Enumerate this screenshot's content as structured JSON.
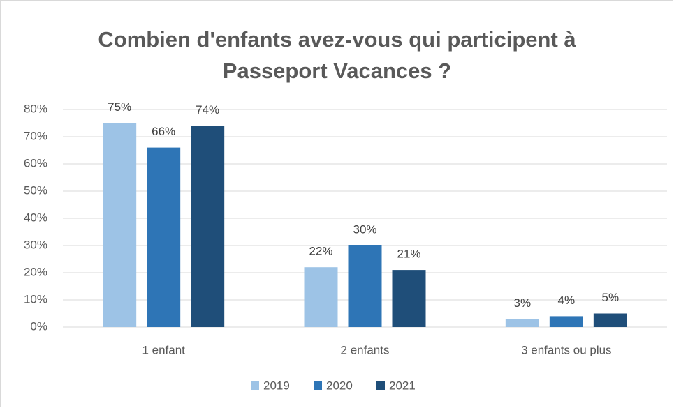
{
  "chart_data": {
    "type": "bar",
    "title": "Combien d'enfants avez-vous qui participent à Passeport Vacances ?",
    "categories": [
      "1 enfant",
      "2 enfants",
      "3 enfants ou plus"
    ],
    "series": [
      {
        "name": "2019",
        "color": "#9dc3e6",
        "values": [
          75,
          22,
          3
        ],
        "value_labels": [
          "75%",
          "22%",
          "3%"
        ]
      },
      {
        "name": "2020",
        "color": "#2e75b6",
        "values": [
          66,
          30,
          4
        ],
        "value_labels": [
          "66%",
          "30%",
          "4%"
        ]
      },
      {
        "name": "2021",
        "color": "#1f4e79",
        "values": [
          74,
          21,
          5
        ],
        "value_labels": [
          "74%",
          "21%",
          "5%"
        ]
      }
    ],
    "ylim": [
      0,
      80
    ],
    "yticks": [
      {
        "value": 0,
        "label": "0%"
      },
      {
        "value": 10,
        "label": "10%"
      },
      {
        "value": 20,
        "label": "20%"
      },
      {
        "value": 30,
        "label": "30%"
      },
      {
        "value": 40,
        "label": "40%"
      },
      {
        "value": 50,
        "label": "50%"
      },
      {
        "value": 60,
        "label": "60%"
      },
      {
        "value": 70,
        "label": "70%"
      },
      {
        "value": 80,
        "label": "80%"
      }
    ],
    "grid": true,
    "legend": "bottom"
  }
}
